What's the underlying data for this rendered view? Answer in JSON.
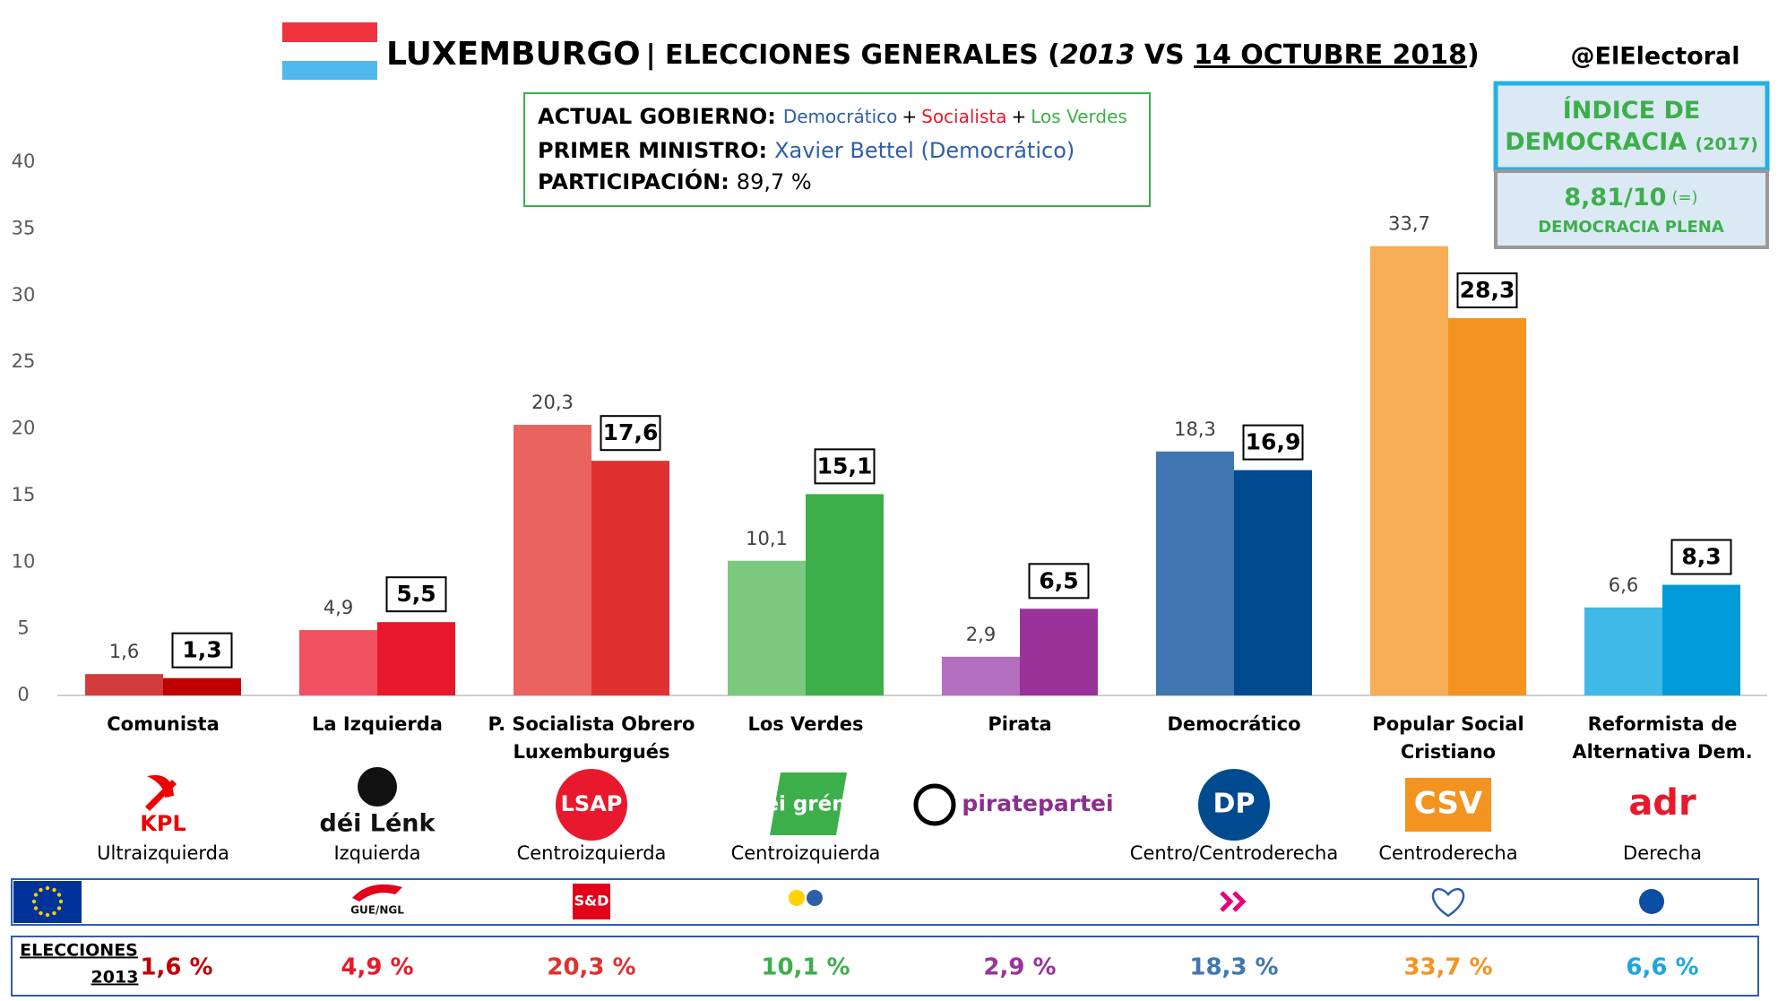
{
  "header": {
    "title_main": "LUXEMBURGO",
    "title_mid": "| ELECCIONES GENERALES (",
    "title_year": "2013",
    "title_vs": " VS ",
    "title_date": "14 OCTUBRE 2018",
    "title_end": ")",
    "handle": "@ElElectoral"
  },
  "government": {
    "gov_label": "ACTUAL GOBIERNO:",
    "gov_parties": [
      "Democrático",
      "+",
      "Socialista",
      "+",
      "Los Verdes"
    ],
    "pm_label": "PRIMER MINISTRO:",
    "pm_name": "Xavier Bettel (Democrático)",
    "turnout_label": "PARTICIPACIÓN:",
    "turnout": "89,7 %"
  },
  "democracy": {
    "title": "ÍNDICE DE DEMOCRACIA",
    "year": "(2017)",
    "score": "8,81/10",
    "change": "(=)",
    "category": "DEMOCRACIA PLENA"
  },
  "chart_data": {
    "type": "bar",
    "categories": [
      "Comunista",
      "La Izquierda",
      "P. Socialista Obrero Luxemburgués",
      "Los Verdes",
      "Pirata",
      "Democrático",
      "Popular Social Cristiano",
      "Reformista de Alternativa Dem."
    ],
    "series": [
      {
        "values": [
          1.6,
          4.9,
          20.3,
          10.1,
          2.9,
          18.3,
          33.7,
          6.6
        ],
        "value_labels": [
          "1,6",
          "4,9",
          "20,3",
          "10,1",
          "2,9",
          "18,3",
          "33,7",
          "6,6"
        ],
        "colors": [
          "#d23c3c",
          "#f0505f",
          "#e9645e",
          "#7bc97f",
          "#b36fc0",
          "#4177b0",
          "#f7ad55",
          "#41b9e6"
        ]
      },
      {
        "values": [
          1.3,
          5.5,
          17.6,
          15.1,
          6.5,
          16.9,
          28.3,
          8.3
        ],
        "value_labels": [
          "1,3",
          "5,5",
          "17,6",
          "15,1",
          "6,5",
          "16,9",
          "28,3",
          "8,3"
        ],
        "colors": [
          "#c00000",
          "#e8192c",
          "#e03030",
          "#3daf4a",
          "#993399",
          "#004a8f",
          "#f39420",
          "#009ad8"
        ]
      }
    ],
    "ylim": [
      0,
      40
    ],
    "yticks": [
      0,
      5,
      10,
      15,
      20,
      25,
      30,
      35,
      40
    ],
    "grid": false
  },
  "logos": [
    "KPL",
    "déi Lénk",
    "LSAP",
    "déi gréng",
    "piratepartei",
    "DP",
    "CSV",
    "adr"
  ],
  "ideologies": [
    "Ultraizquierda",
    "Izquierda",
    "Centroizquierda",
    "Centroizquierda",
    null,
    "Centro/Centroderecha",
    "Centroderecha",
    "Derecha"
  ],
  "ep_groups": [
    null,
    "GUE/NGL",
    "S&D",
    null,
    null,
    null,
    null,
    null
  ],
  "results_2013": {
    "label_line1": "ELECCIONES",
    "label_line2": "2013",
    "values": [
      "1,6 %",
      "4,9 %",
      "20,3 %",
      "10,1 %",
      "2,9 %",
      "18,3 %",
      "33,7 %",
      "6,6 %"
    ],
    "colors": [
      "#c00000",
      "#e8192c",
      "#e03030",
      "#3daf4a",
      "#993399",
      "#4177b0",
      "#f39420",
      "#1ea5de"
    ]
  }
}
